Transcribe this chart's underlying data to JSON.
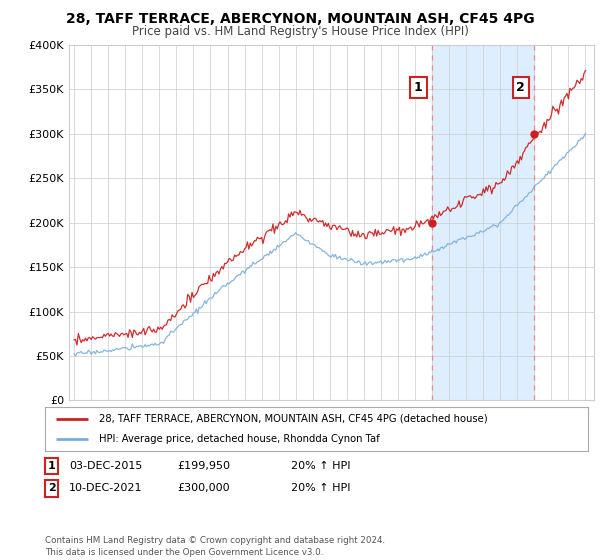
{
  "title": "28, TAFF TERRACE, ABERCYNON, MOUNTAIN ASH, CF45 4PG",
  "subtitle": "Price paid vs. HM Land Registry's House Price Index (HPI)",
  "legend_line1": "28, TAFF TERRACE, ABERCYNON, MOUNTAIN ASH, CF45 4PG (detached house)",
  "legend_line2": "HPI: Average price, detached house, Rhondda Cynon Taf",
  "transaction1_label": "1",
  "transaction1_date": "03-DEC-2015",
  "transaction1_price": "£199,950",
  "transaction1_hpi": "20% ↑ HPI",
  "transaction2_label": "2",
  "transaction2_date": "10-DEC-2021",
  "transaction2_price": "£300,000",
  "transaction2_hpi": "20% ↑ HPI",
  "footer": "Contains HM Land Registry data © Crown copyright and database right 2024.\nThis data is licensed under the Open Government Licence v3.0.",
  "hpi_color": "#7aaddc",
  "price_color": "#cc2222",
  "marker_color": "#cc2222",
  "dashed_line_color": "#ee8888",
  "shade_color": "#ddeeff",
  "background_color": "#ffffff",
  "plot_bg_color": "#ffffff",
  "grid_color": "#cccccc",
  "ylim": [
    0,
    400000
  ],
  "yticks": [
    0,
    50000,
    100000,
    150000,
    200000,
    250000,
    300000,
    350000,
    400000
  ],
  "year_start": 1995,
  "year_end": 2025,
  "transaction1_year": 2016.0,
  "transaction2_year": 2022.0,
  "t1_price": 199950,
  "t2_price": 300000
}
